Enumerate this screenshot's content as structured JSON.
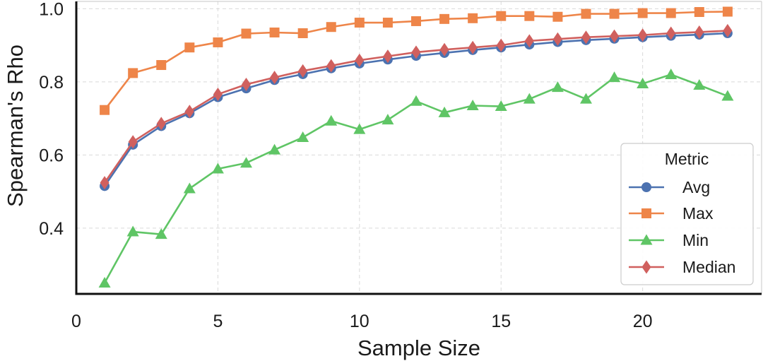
{
  "chart_data": {
    "type": "line",
    "title": "",
    "xlabel": "Sample Size",
    "ylabel": "Spearman's Rho",
    "xlim": [
      0,
      24.2
    ],
    "ylim": [
      0.22,
      1.02
    ],
    "xticks": [
      0,
      5,
      10,
      15,
      20
    ],
    "yticks": [
      0.4,
      0.6,
      0.8,
      1.0
    ],
    "ytick_labels": [
      "0.4",
      "0.6",
      "0.8",
      "1.0"
    ],
    "grid": true,
    "x": [
      1,
      2,
      3,
      4,
      5,
      6,
      7,
      8,
      9,
      10,
      11,
      12,
      13,
      14,
      15,
      16,
      17,
      18,
      19,
      20,
      21,
      22,
      23
    ],
    "legend": {
      "title": "Metric",
      "position": "lower-right"
    },
    "series": [
      {
        "name": "Avg",
        "color": "#4c72b0",
        "marker": "circle",
        "values": [
          0.515,
          0.628,
          0.679,
          0.714,
          0.758,
          0.782,
          0.805,
          0.821,
          0.837,
          0.85,
          0.861,
          0.871,
          0.879,
          0.887,
          0.894,
          0.902,
          0.909,
          0.914,
          0.918,
          0.922,
          0.926,
          0.929,
          0.933
        ]
      },
      {
        "name": "Max",
        "color": "#ee8549",
        "marker": "square",
        "values": [
          0.723,
          0.824,
          0.846,
          0.894,
          0.908,
          0.932,
          0.935,
          0.933,
          0.95,
          0.962,
          0.962,
          0.966,
          0.972,
          0.974,
          0.98,
          0.98,
          0.978,
          0.986,
          0.986,
          0.988,
          0.988,
          0.991,
          0.992
        ]
      },
      {
        "name": "Min",
        "color": "#5fc565",
        "marker": "triangle",
        "values": [
          0.25,
          0.39,
          0.383,
          0.508,
          0.562,
          0.578,
          0.614,
          0.648,
          0.693,
          0.67,
          0.696,
          0.747,
          0.716,
          0.735,
          0.733,
          0.753,
          0.785,
          0.753,
          0.812,
          0.795,
          0.82,
          0.791,
          0.761
        ]
      },
      {
        "name": "Median",
        "color": "#d0605e",
        "marker": "diamond",
        "values": [
          0.524,
          0.636,
          0.686,
          0.719,
          0.766,
          0.793,
          0.812,
          0.83,
          0.844,
          0.859,
          0.87,
          0.881,
          0.888,
          0.894,
          0.9,
          0.912,
          0.917,
          0.922,
          0.925,
          0.928,
          0.933,
          0.936,
          0.94
        ]
      }
    ]
  }
}
